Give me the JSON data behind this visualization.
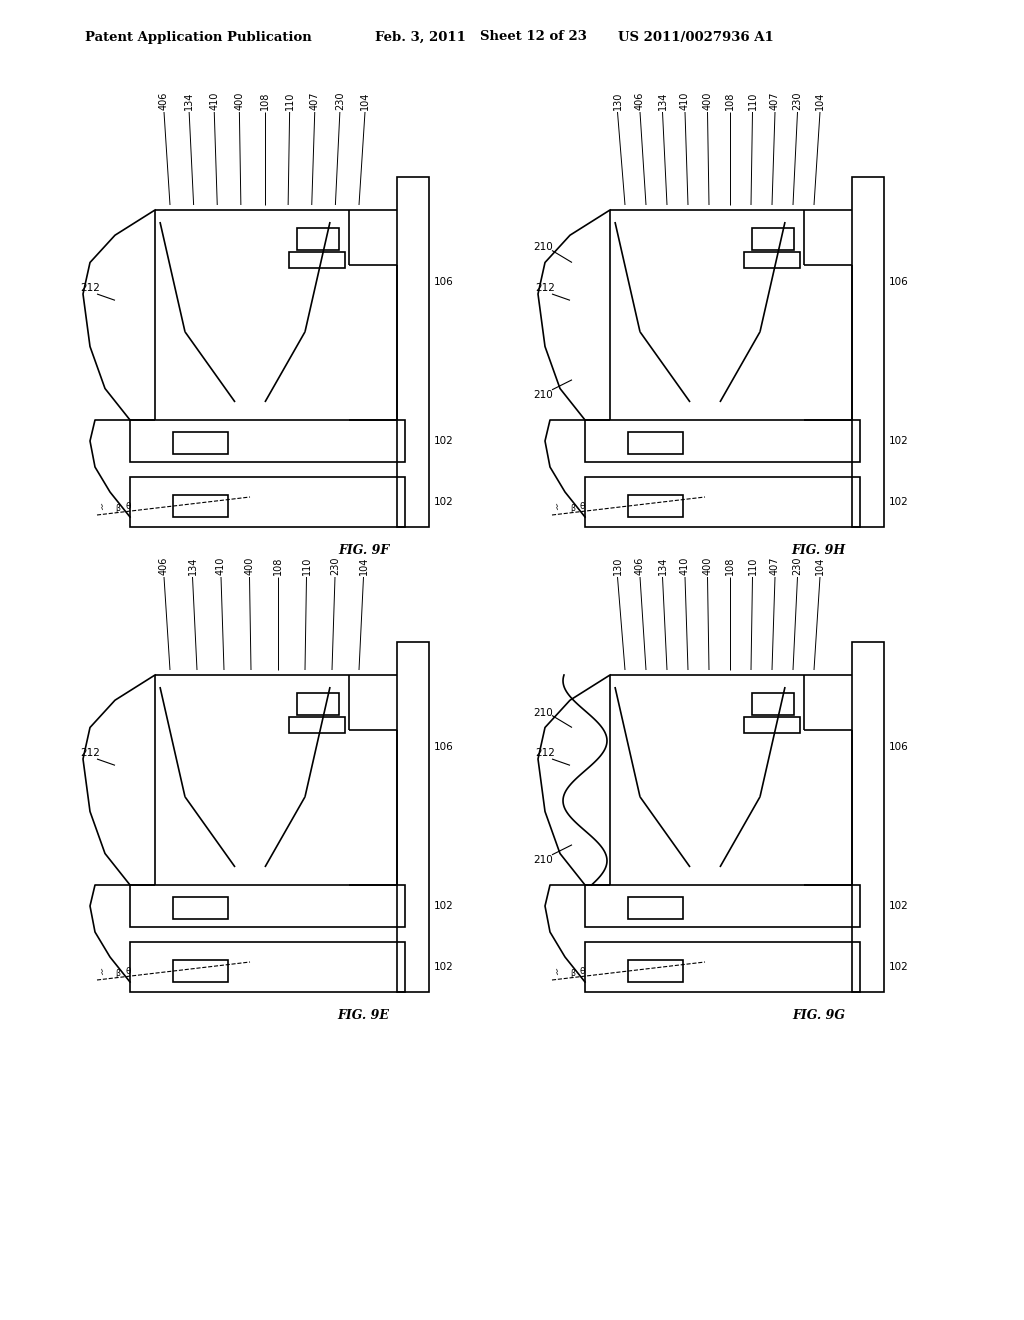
{
  "title_left": "Patent Application Publication",
  "title_mid": "Feb. 3, 2011",
  "title_sheet": "Sheet 12 of 23",
  "title_right": "US 2011/0027936 A1",
  "background_color": "#ffffff",
  "line_color": "#000000",
  "panels": [
    {
      "fig_label": "FIG. 9F",
      "ox": 75,
      "oy": 755,
      "top_labels": [
        "406",
        "134",
        "410",
        "400",
        "108",
        "110",
        "407",
        "230",
        "104"
      ],
      "has_210": false,
      "has_wavy": false
    },
    {
      "fig_label": "FIG. 9H",
      "ox": 530,
      "oy": 755,
      "top_labels": [
        "130",
        "406",
        "134",
        "410",
        "400",
        "108",
        "110",
        "407",
        "230",
        "104"
      ],
      "has_210": true,
      "has_wavy": false
    },
    {
      "fig_label": "FIG. 9E",
      "ox": 75,
      "oy": 290,
      "top_labels": [
        "406",
        "134",
        "410",
        "400",
        "108",
        "110",
        "230",
        "104"
      ],
      "has_210": false,
      "has_wavy": false
    },
    {
      "fig_label": "FIG. 9G",
      "ox": 530,
      "oy": 290,
      "top_labels": [
        "130",
        "406",
        "134",
        "410",
        "400",
        "108",
        "110",
        "407",
        "230",
        "104"
      ],
      "has_210": true,
      "has_wavy": true
    }
  ]
}
